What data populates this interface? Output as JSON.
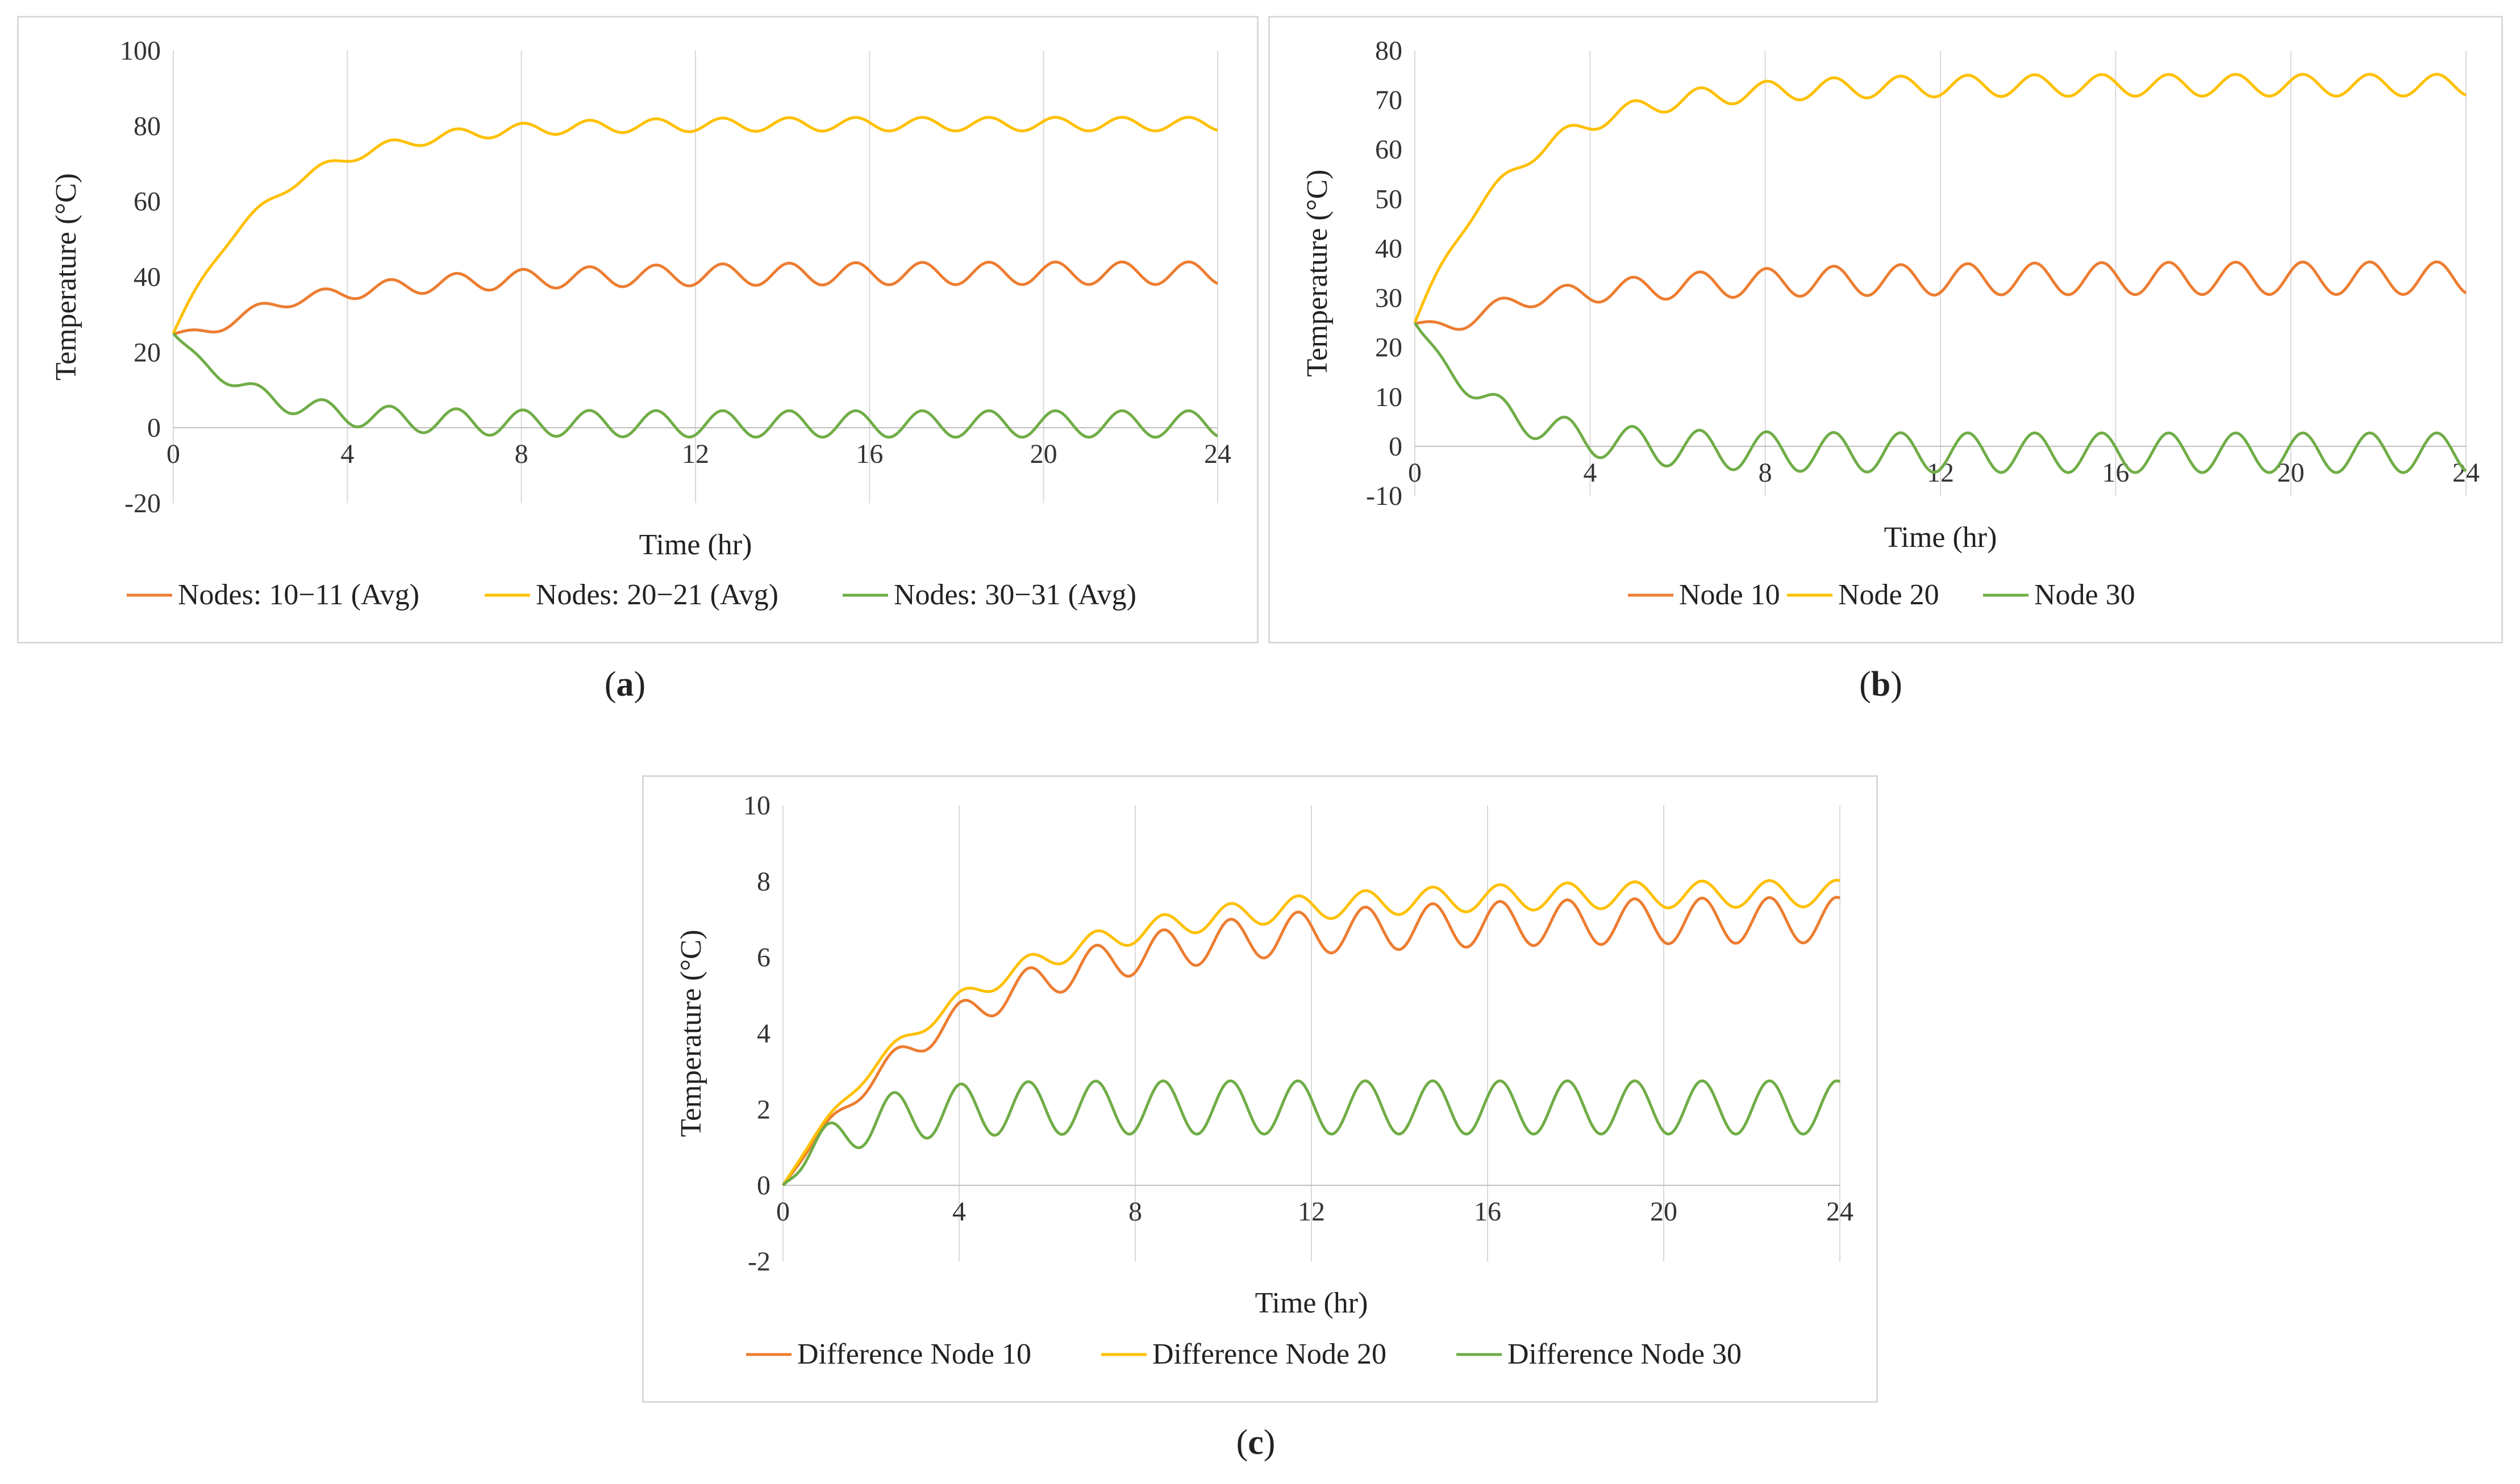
{
  "captions": [
    {
      "open": "(",
      "letter": "a",
      "close": ")"
    },
    {
      "open": "(",
      "letter": "b",
      "close": ")"
    },
    {
      "open": "(",
      "letter": "c",
      "close": ")"
    }
  ],
  "chart_data": [
    {
      "id": "a",
      "type": "line",
      "title": "",
      "xlabel": "Time (hr)",
      "ylabel": "Temperature (°C)",
      "xlim": [
        0,
        24
      ],
      "ylim": [
        -20,
        100
      ],
      "xticks": [
        0,
        4,
        8,
        12,
        16,
        20,
        24
      ],
      "yticks": [
        -20,
        0,
        20,
        40,
        60,
        80,
        100
      ],
      "grid": "vertical",
      "legend": "bottom",
      "series": [
        {
          "name": "Nodes: 10−11 (Avg)",
          "color": "#ED7D31",
          "start": 25,
          "steady": 41,
          "rise_tau": 3.5,
          "amp_end": 3.0,
          "amp_tau": 4,
          "dip": 3,
          "period": 1.53,
          "phase": 0.0
        },
        {
          "name": "Nodes: 20−21 (Avg)",
          "color": "#FFC000",
          "start": 25,
          "steady": 80.5,
          "rise_tau": 2.2,
          "amp_end": 1.8,
          "amp_tau": 3,
          "dip": 0,
          "period": 1.53,
          "phase": 0.0
        },
        {
          "name": "Nodes: 30−31 (Avg)",
          "color": "#70AD47",
          "start": 25,
          "steady": 1,
          "rise_tau": 1.8,
          "amp_end": 3.5,
          "amp_tau": 2,
          "dip": 0,
          "period": 1.53,
          "phase": 0.0
        }
      ]
    },
    {
      "id": "b",
      "type": "line",
      "title": "",
      "xlabel": "Time (hr)",
      "ylabel": "Temperature (°C)",
      "xlim": [
        0,
        24
      ],
      "ylim": [
        -10,
        80
      ],
      "xticks": [
        0,
        4,
        8,
        12,
        16,
        20,
        24
      ],
      "yticks": [
        -10,
        0,
        10,
        20,
        30,
        40,
        50,
        60,
        70,
        80
      ],
      "grid": "vertical",
      "legend": "bottom",
      "series": [
        {
          "name": "Node 10",
          "color": "#ED7D31",
          "start": 25,
          "steady": 34,
          "rise_tau": 3.5,
          "amp_end": 3.3,
          "amp_tau": 4,
          "dip": 3,
          "period": 1.53,
          "phase": 0.0
        },
        {
          "name": "Node 20",
          "color": "#FFC000",
          "start": 25,
          "steady": 73,
          "rise_tau": 2.2,
          "amp_end": 2.2,
          "amp_tau": 3,
          "dip": 0,
          "period": 1.53,
          "phase": 0.0
        },
        {
          "name": "Node 30",
          "color": "#70AD47",
          "start": 25,
          "steady": -1.3,
          "rise_tau": 1.8,
          "amp_end": 4.0,
          "amp_tau": 2,
          "dip": 0,
          "period": 1.53,
          "phase": 0.0
        }
      ]
    },
    {
      "id": "c",
      "type": "line",
      "title": "",
      "xlabel": "Time (hr)",
      "ylabel": "Temperature (°C)",
      "xlim": [
        0,
        24
      ],
      "ylim": [
        -2,
        10
      ],
      "xticks": [
        0,
        4,
        8,
        12,
        16,
        20,
        24
      ],
      "yticks": [
        -2,
        0,
        2,
        4,
        6,
        8,
        10
      ],
      "grid": "vertical",
      "legend": "bottom",
      "series": [
        {
          "name": "Difference Node 10",
          "color": "#ED7D31",
          "start": 0,
          "steady": 7.0,
          "rise_tau": 4.0,
          "amp_end": 0.6,
          "amp_tau": 4,
          "dip": 0,
          "period": 1.53,
          "phase": 0.6
        },
        {
          "name": "Difference Node 20",
          "color": "#FFC000",
          "start": 0,
          "steady": 7.7,
          "rise_tau": 4.0,
          "amp_end": 0.35,
          "amp_tau": 4,
          "dip": 0,
          "period": 1.53,
          "phase": 0.6
        },
        {
          "name": "Difference Node 30",
          "color": "#70AD47",
          "start": 0,
          "steady": 2.05,
          "rise_tau": 1.2,
          "amp_end": 0.7,
          "amp_tau": 1,
          "dip": 0,
          "period": 1.53,
          "phase": 0.6
        }
      ]
    }
  ]
}
